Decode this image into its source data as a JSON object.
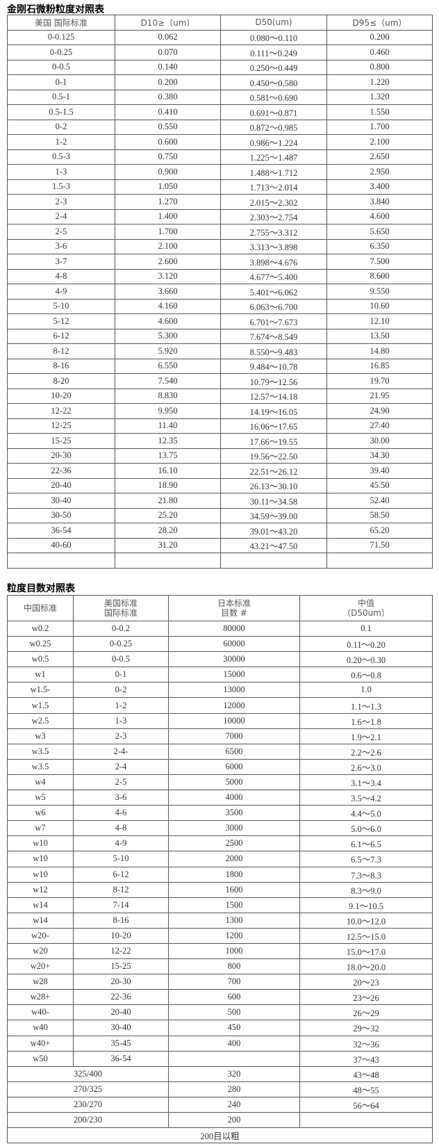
{
  "table1": {
    "title": "金刚石微粉粒度对照表",
    "header": [
      "美国 国际标准",
      "D10≥（um）",
      "D50(um)",
      "D95≤（um）"
    ],
    "rows": [
      [
        "0-0.125",
        "0.062",
        "0.080～0.110",
        "0.200"
      ],
      [
        "0-0.25",
        "0.070",
        "0.111～0.249",
        "0.460"
      ],
      [
        "0-0.5",
        "0.140",
        "0.250～0.449",
        "0.800"
      ],
      [
        "0-1",
        "0.200",
        "0.450～0.580",
        "1.220"
      ],
      [
        "0.5-1",
        "0.380",
        "0.581～0.690",
        "1.320"
      ],
      [
        "0.5-1.5",
        "0.410",
        "0.691～0.871",
        "1.550"
      ],
      [
        "0-2",
        "0.550",
        "0.872～0.985",
        "1.700"
      ],
      [
        "1-2",
        "0.600",
        "0.986～1.224",
        "2.100"
      ],
      [
        "0.5-3",
        "0.750",
        "1.225～1.487",
        "2.650"
      ],
      [
        "1-3",
        "0.900",
        "1.488～1.712",
        "2.950"
      ],
      [
        "1.5-3",
        "1.050",
        "1.713～2.014",
        "3.400"
      ],
      [
        "2-3",
        "1.270",
        "2.015～2.302",
        "3.840"
      ],
      [
        "2-4",
        "1.400",
        "2.303～2.754",
        "4.600"
      ],
      [
        "2-5",
        "1.700",
        "2.755～3.312",
        "5.650"
      ],
      [
        "3-6",
        "2.100",
        "3.313～3.898",
        "6.350"
      ],
      [
        "3-7",
        "2.600",
        "3.898～4.676",
        "7.500"
      ],
      [
        "4-8",
        "3.120",
        "4.677～5.400",
        "8.600"
      ],
      [
        "4-9",
        "3.660",
        "5.401～6.062",
        "9.550"
      ],
      [
        "5-10",
        "4.160",
        "6.063～6.700",
        "10.60"
      ],
      [
        "5-12",
        "4.600",
        "6.701～7.673",
        "12.10"
      ],
      [
        "6-12",
        "5.300",
        "7.674～8.549",
        "13.50"
      ],
      [
        "8-12",
        "5.920",
        "8.550～9.483",
        "14.80"
      ],
      [
        "8-16",
        "6.550",
        "9.484～10.78",
        "16.85"
      ],
      [
        "8-20",
        "7.540",
        "10.79～12.56",
        "19.70"
      ],
      [
        "10-20",
        "8.830",
        "12.57～14.18",
        "21.95"
      ],
      [
        "12-22",
        "9.950",
        "14.19～16.05",
        "24.90"
      ],
      [
        "12-25",
        "11.40",
        "16.06～17.65",
        "27.40"
      ],
      [
        "15-25",
        "12.35",
        "17.66～19.55",
        "30.00"
      ],
      [
        "20-30",
        "13.75",
        "19.56～22.50",
        "34.30"
      ],
      [
        "22-36",
        "16.10",
        "22.51～26.12",
        "39.40"
      ],
      [
        "20-40",
        "18.90",
        "26.13～30.10",
        "45.50"
      ],
      [
        "30-40",
        "21.80",
        "30.11～34.58",
        "52.40"
      ],
      [
        "30-50",
        "25.20",
        "34.59～39.00",
        "58.50"
      ],
      [
        "36-54",
        "28.20",
        "39.01～43.20",
        "65.20"
      ],
      [
        "40-60",
        "31.20",
        "43.21～47.50",
        "71.50"
      ]
    ]
  },
  "table2": {
    "title": "粒度目数对照表",
    "header": [
      [
        "中国标准"
      ],
      [
        "美国标准",
        "国际标准"
      ],
      [
        "日本标准",
        "目数 #"
      ],
      [
        "中值",
        "（D50um）"
      ]
    ],
    "rows": [
      [
        "w0.2",
        "0-0.2",
        "80000",
        "0.1"
      ],
      [
        "w0.25",
        "0-0.25",
        "60000",
        "0.11～0.20"
      ],
      [
        "w0.5",
        "0-0.5",
        "30000",
        "0.20～0.30"
      ],
      [
        "w1",
        "0-1",
        "15000",
        "0.6～0.8"
      ],
      [
        "w1.5-",
        "0-2",
        "13000",
        "1.0"
      ],
      [
        "w1.5",
        "1-2",
        "12000",
        "1.1～1.3"
      ],
      [
        "w2.5",
        "1-3",
        "10000",
        "1.6～1.8"
      ],
      [
        "w3",
        "2-3",
        "7000",
        "1.9～2.1"
      ],
      [
        "w3.5",
        "2-4-",
        "6500",
        "2.2～2.6"
      ],
      [
        "w3.5",
        "2-4",
        "6000",
        "2.6～3.0"
      ],
      [
        "w4",
        "2-5",
        "5000",
        "3.1～3.4"
      ],
      [
        "w5",
        "3-6",
        "4000",
        "3.5～4.2"
      ],
      [
        "w6",
        "4-6",
        "3500",
        "4.4～5.0"
      ],
      [
        "w7",
        "4-8",
        "3000",
        "5.0～6.0"
      ],
      [
        "w10",
        "4-9",
        "2500",
        "6.1～6.5"
      ],
      [
        "w10",
        "5-10",
        "2000",
        "6.5～7.3"
      ],
      [
        "w10",
        "6-12",
        "1800",
        "7.3～8.3"
      ],
      [
        "w12",
        "8-12",
        "1600",
        "8.3～9.0"
      ],
      [
        "w14",
        "7-14",
        "1500",
        "9.1～10.5"
      ],
      [
        "w14",
        "8-16",
        "1300",
        "10.0～12.0"
      ],
      [
        "w20-",
        "10-20",
        "1200",
        "12.5～15.0"
      ],
      [
        "w20",
        "12-22",
        "1000",
        "15.0～17.0"
      ],
      [
        "w20+",
        "15-25",
        "800",
        "18.0～20.0"
      ],
      [
        "w28",
        "20-30",
        "700",
        "20～23"
      ],
      [
        "w28+",
        "22-36",
        "600",
        "23～26"
      ],
      [
        "w40-",
        "20-40",
        "500",
        "26～29"
      ],
      [
        "w40",
        "30-40",
        "450",
        "29～32"
      ],
      [
        "w40+",
        "35-45",
        "400",
        "32～36"
      ],
      [
        "w50",
        "36-54",
        null,
        "37～43"
      ]
    ],
    "merged_rows": [
      [
        "325/400",
        "320",
        "43～48"
      ],
      [
        "270/325",
        "280",
        "48～55"
      ],
      [
        "230/270",
        "240",
        "56～64"
      ],
      [
        "200/230",
        "200",
        null
      ]
    ],
    "footer": "200目以粗"
  }
}
